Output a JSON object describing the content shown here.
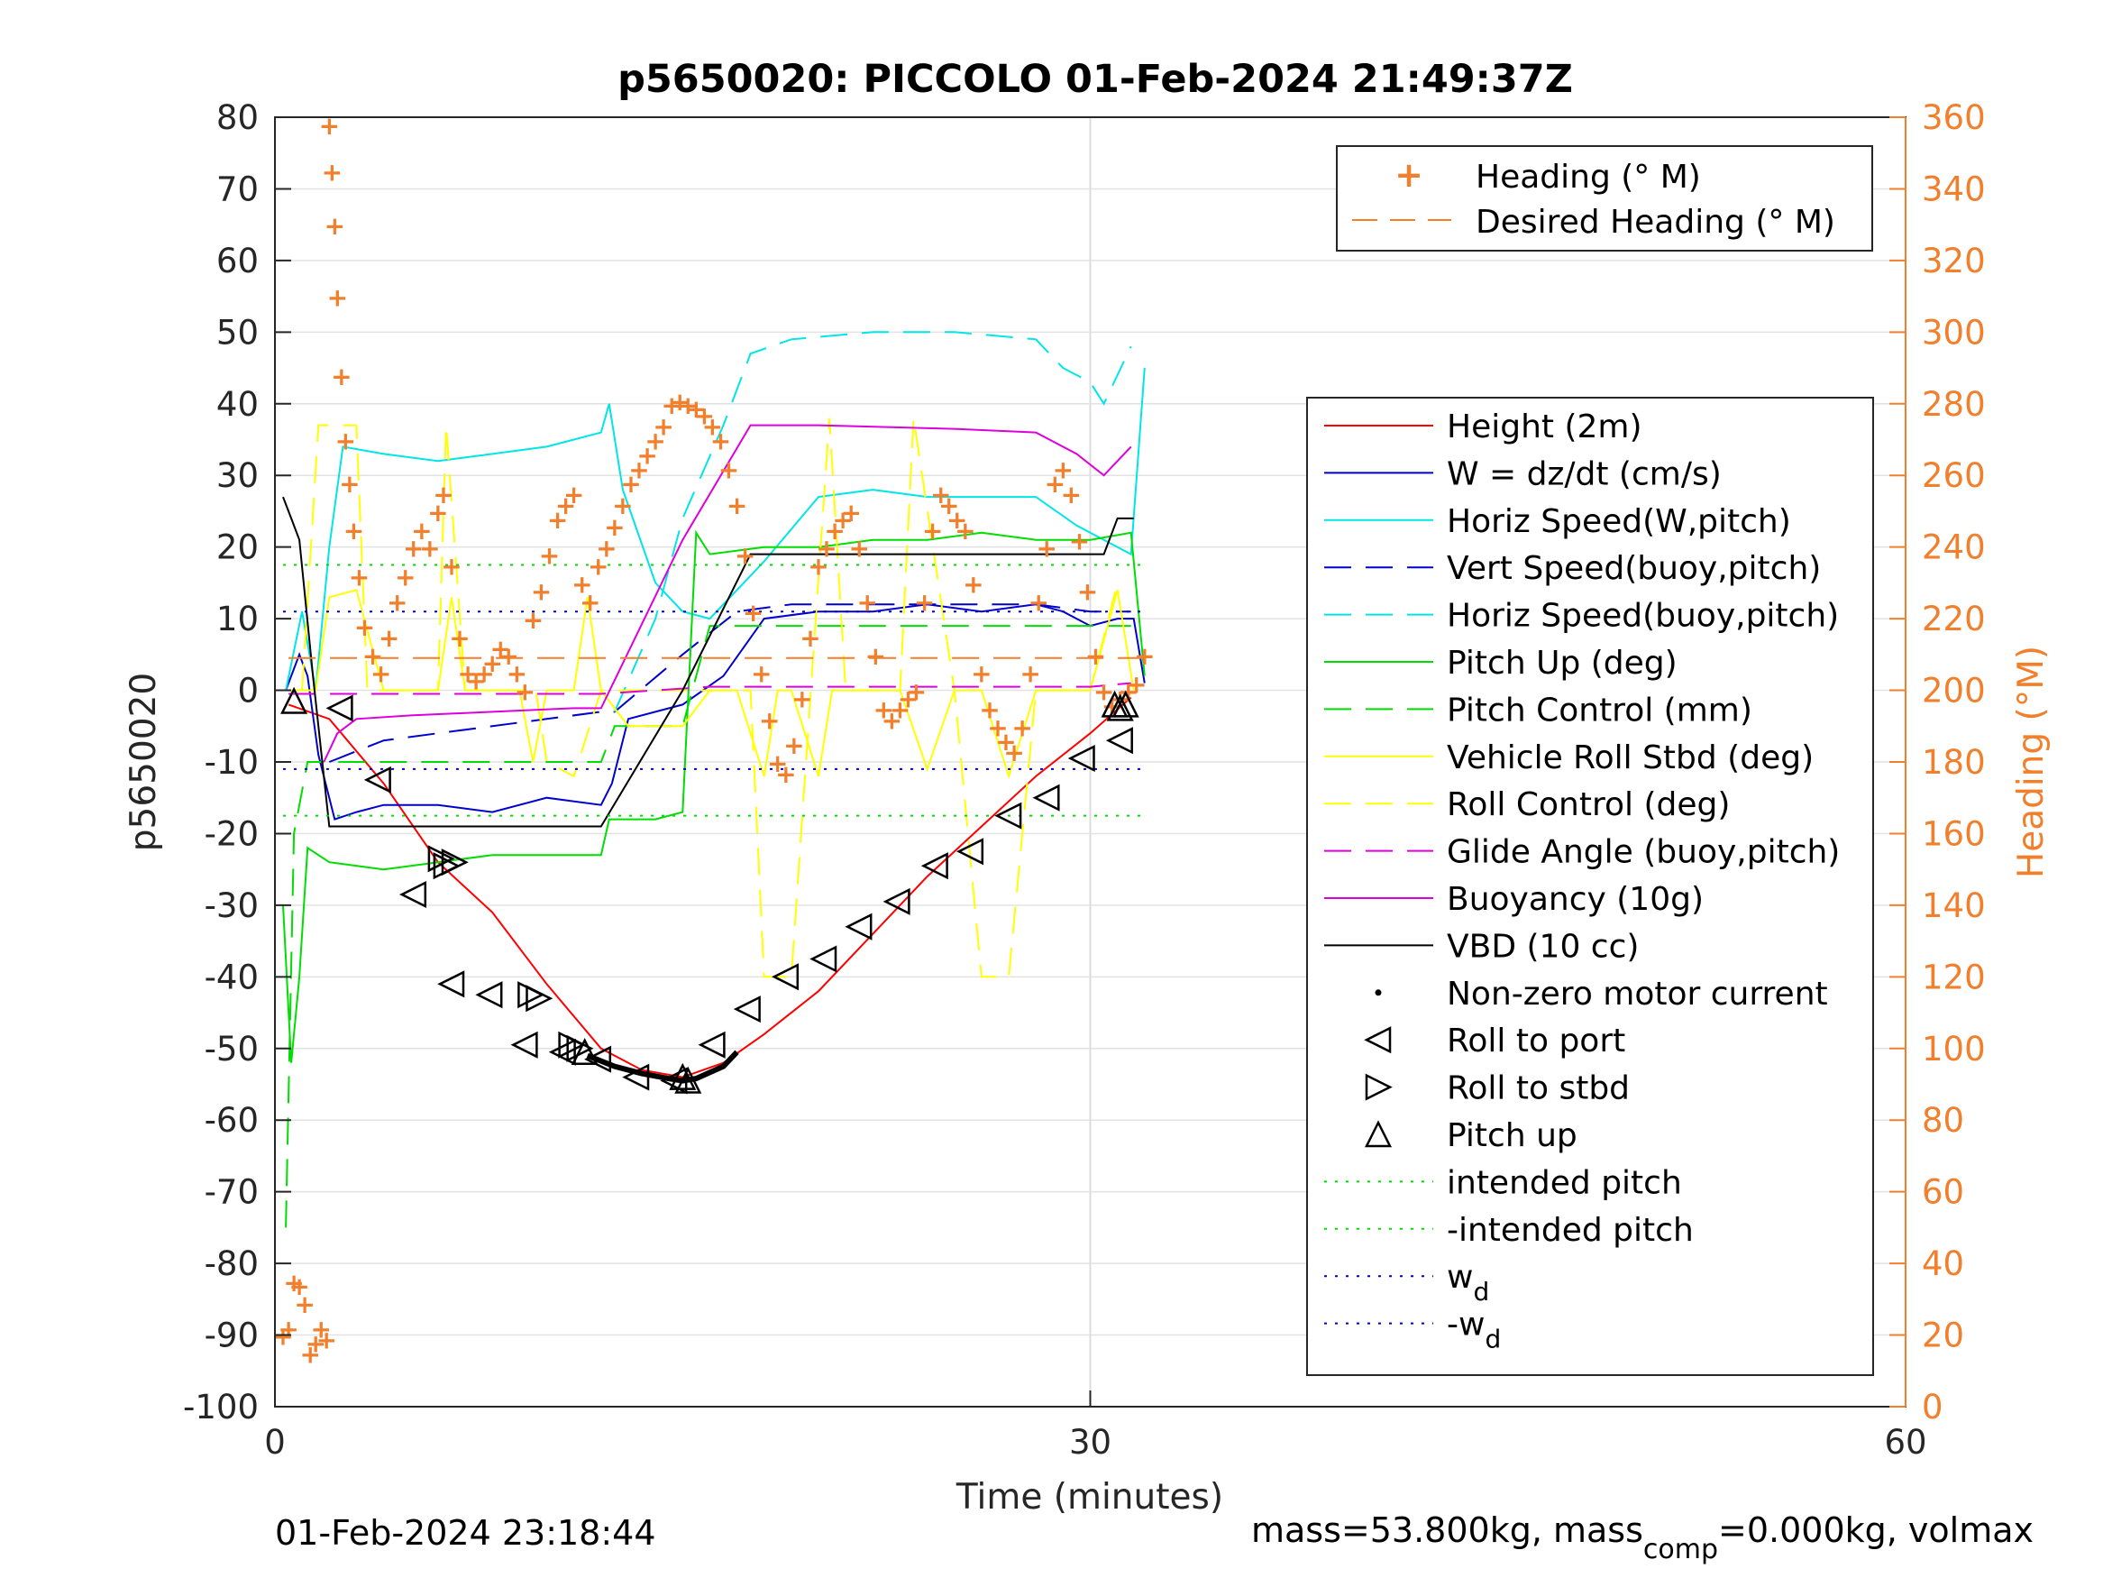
{
  "chart_data": {
    "type": "line",
    "title": "p5650020: PICCOLO 01-Feb-2024 21:49:37Z",
    "xlabel": "Time (minutes)",
    "ylabel": "p5650020",
    "ylabel_right": "Heading (°M)",
    "xlim": [
      0,
      60
    ],
    "ylim": [
      -100,
      80
    ],
    "ylim_right": [
      0,
      360
    ],
    "x_ticks": [
      "0",
      "30",
      "60"
    ],
    "y_ticks": [
      "-100",
      "-90",
      "-80",
      "-70",
      "-60",
      "-50",
      "-40",
      "-30",
      "-20",
      "-10",
      "0",
      "10",
      "20",
      "30",
      "40",
      "50",
      "60",
      "70",
      "80"
    ],
    "y_ticks_right": [
      "0",
      "20",
      "40",
      "60",
      "80",
      "100",
      "120",
      "140",
      "160",
      "180",
      "200",
      "220",
      "240",
      "260",
      "280",
      "300",
      "320",
      "340",
      "360"
    ],
    "grid": true,
    "legend_main": {
      "placement": "right",
      "entries": [
        "Height (2m)",
        "W = dz/dt (cm/s)",
        "Horiz Speed(W,pitch)",
        "Vert Speed(buoy,pitch)",
        "Horiz Speed(buoy,pitch)",
        "Pitch Up (deg)",
        "Pitch Control (mm)",
        "Vehicle Roll Stbd (deg)",
        "Roll Control (deg)",
        "Glide Angle (buoy,pitch)",
        "Buoyancy (10g)",
        "VBD (10 cc)",
        "Non-zero motor current",
        "Roll to port",
        "Roll to stbd",
        "Pitch up",
        "intended pitch",
        "-intended pitch",
        "w",
        "-w"
      ],
      "subscript": "d"
    },
    "legend_heading": {
      "placement": "top-right",
      "entries": [
        "Heading (° M)",
        "Desired Heading (° M)"
      ]
    },
    "series": [
      {
        "name": "Height (2m)",
        "color": "#ff0000",
        "x": [
          0.5,
          2,
          4,
          6,
          8,
          10,
          12,
          13.5,
          15,
          16.5,
          18,
          20,
          22,
          24,
          26,
          28,
          30,
          31.5
        ],
        "y": [
          -2,
          -4,
          -13,
          -24,
          -31,
          -41,
          -50,
          -53,
          -54,
          -52,
          -48,
          -42,
          -34,
          -26,
          -19,
          -12,
          -6,
          -1
        ]
      },
      {
        "name": "W = dz/dt (cm/s)",
        "color": "#0000cc",
        "x": [
          0.4,
          0.9,
          1.2,
          1.6,
          2.2,
          3,
          4,
          6,
          8,
          10,
          12,
          12.4,
          13,
          15,
          16.5,
          18,
          20,
          22,
          24,
          26,
          28,
          29,
          30,
          31,
          31.6,
          32
        ],
        "y": [
          0,
          5,
          2,
          -9,
          -18,
          -17,
          -16,
          -16,
          -17,
          -15,
          -16,
          -13,
          -4,
          -2,
          2,
          10,
          11,
          11,
          12,
          11,
          12,
          11,
          9,
          10,
          10,
          1
        ]
      },
      {
        "name": "Horiz Speed(W,pitch)",
        "color": "#00e5e5",
        "x": [
          0.4,
          1,
          1.5,
          2,
          2.5,
          4,
          6,
          8,
          10,
          12,
          12.3,
          12.8,
          14,
          15,
          16,
          18,
          20,
          22,
          24,
          26,
          28,
          29.5,
          30.5,
          31.5,
          32
        ],
        "y": [
          0,
          11,
          0,
          20,
          34,
          33,
          32,
          33,
          34,
          36,
          40,
          28,
          15,
          11,
          10,
          18,
          27,
          28,
          27,
          27,
          27,
          23,
          21,
          19,
          45
        ]
      },
      {
        "name": "Vert Speed(buoy,pitch)",
        "color": "#0000cc",
        "dashed": true,
        "x": [
          2,
          4,
          6,
          8,
          10,
          12,
          12.5,
          15,
          17,
          19,
          22,
          25,
          28,
          30,
          31.5
        ],
        "y": [
          -10,
          -7,
          -6,
          -5,
          -4,
          -3,
          -3,
          5,
          11,
          12,
          12,
          12,
          12,
          11,
          11
        ]
      },
      {
        "name": "Horiz Speed(buoy,pitch)",
        "color": "#00e5e5",
        "dashed": true,
        "x": [
          12.5,
          14,
          15,
          16.5,
          17.5,
          19,
          22,
          25,
          28,
          29,
          30,
          30.5,
          31.5
        ],
        "y": [
          -3,
          10,
          24,
          37,
          47,
          49,
          50,
          50,
          49,
          45,
          43,
          40,
          48
        ]
      },
      {
        "name": "Pitch Up (deg)",
        "color": "#00dd00",
        "x": [
          0.3,
          0.6,
          0.9,
          1.2,
          2,
          4,
          6,
          8,
          10,
          12,
          12.3,
          14,
          15,
          15.5,
          16,
          18,
          20,
          22,
          24,
          26,
          28,
          30,
          31.5,
          32
        ],
        "y": [
          -30,
          -52,
          -40,
          -22,
          -24,
          -25,
          -24,
          -23,
          -23,
          -23,
          -18,
          -18,
          -17,
          22,
          19,
          20,
          20,
          21,
          21,
          22,
          21,
          21,
          22,
          2
        ]
      },
      {
        "name": "Pitch Control (mm)",
        "color": "#00dd00",
        "dashed": true,
        "x": [
          0.4,
          0.7,
          1.2,
          2,
          6,
          12,
          12.5,
          15,
          16,
          20,
          25,
          30,
          31.5
        ],
        "y": [
          -75,
          -20,
          -10,
          -10,
          -10,
          -10,
          -5,
          -5,
          9,
          9,
          9,
          9,
          9
        ]
      },
      {
        "name": "Vehicle Roll Stbd (deg)",
        "color": "#ffff00",
        "x": [
          0.5,
          1.5,
          2,
          3,
          4,
          6,
          6.5,
          7,
          8,
          9,
          9.5,
          10,
          11,
          11.5,
          12,
          13,
          15,
          16,
          17,
          18,
          18.5,
          19,
          20,
          20.5,
          21,
          22,
          23,
          24,
          25,
          26,
          27,
          28,
          29,
          30,
          31,
          31.6
        ],
        "y": [
          0,
          0,
          13,
          14,
          0,
          0,
          13,
          0,
          0,
          0,
          -10,
          0,
          0,
          13,
          0,
          -5,
          -5,
          0,
          0,
          -12,
          0,
          0,
          -12,
          0,
          0,
          0,
          0,
          -11,
          0,
          0,
          -12,
          0,
          0,
          0,
          14,
          0
        ]
      },
      {
        "name": "Roll Control (deg)",
        "color": "#ffff00",
        "dashed": true,
        "x": [
          1,
          1.6,
          2,
          3,
          3.4,
          6,
          6.3,
          7,
          9.6,
          10,
          11,
          12,
          17.5,
          18,
          19,
          20.4,
          21,
          23,
          23.5,
          25,
          26,
          27,
          28,
          30,
          31
        ],
        "y": [
          0,
          37,
          37,
          37,
          0,
          0,
          37,
          0,
          0,
          -10,
          -12,
          0,
          0,
          -40,
          -40,
          38,
          0,
          0,
          38,
          0,
          -40,
          -40,
          0,
          0,
          15
        ]
      },
      {
        "name": "Glide Angle (buoy,pitch)",
        "color": "#dd00dd",
        "dashed": true,
        "x": [
          0.5,
          2,
          6,
          12,
          16,
          20,
          25,
          30,
          31.5
        ],
        "y": [
          -0.5,
          -0.5,
          -0.5,
          -0.5,
          0.5,
          0.5,
          0.5,
          0.5,
          1
        ]
      },
      {
        "name": "Buoyancy (10g)",
        "color": "#dd00dd",
        "x": [
          1.8,
          2.3,
          3,
          5,
          8,
          11,
          12,
          15,
          17.5,
          18,
          20,
          25,
          28,
          29.5,
          30.5,
          31.5
        ],
        "y": [
          -10,
          -6,
          -4,
          -3.5,
          -3,
          -2.5,
          -2.5,
          21,
          37,
          37,
          37,
          36.5,
          36,
          33,
          30,
          34
        ]
      },
      {
        "name": "VBD (10 cc)",
        "color": "#000000",
        "x": [
          0.3,
          0.6,
          0.9,
          1.4,
          2,
          6,
          12,
          15,
          17.5,
          18,
          20,
          25,
          29,
          30.5,
          31,
          31.6
        ],
        "y": [
          27,
          24,
          21,
          2,
          -19,
          -19,
          -19,
          0,
          19,
          19,
          19,
          19,
          19,
          19,
          24,
          24
        ]
      },
      {
        "name": "intended pitch",
        "color": "#00dd00",
        "dotted": true,
        "x": [
          0.3,
          32
        ],
        "y": [
          17.5,
          17.5
        ]
      },
      {
        "name": "-intended pitch",
        "color": "#00dd00",
        "dotted": true,
        "x": [
          0.3,
          32
        ],
        "y": [
          -17.5,
          -17.5
        ]
      },
      {
        "name": "w",
        "color": "#0000cc",
        "dotted": true,
        "x": [
          0.3,
          32
        ],
        "y": [
          11,
          11
        ]
      },
      {
        "name": "-w",
        "color": "#0000cc",
        "dotted": true,
        "x": [
          0.3,
          32
        ],
        "y": [
          -11,
          -11
        ]
      },
      {
        "name": "Desired Heading (° M)",
        "color": "#f27f2c",
        "dashed": true,
        "axis": "right",
        "x": [
          0.5,
          32
        ],
        "y": [
          209,
          209
        ]
      }
    ],
    "heading_points": {
      "name": "Heading (° M)",
      "color": "#f27f2c",
      "x": [
        0.3,
        0.5,
        0.7,
        0.9,
        1.1,
        1.3,
        1.5,
        1.7,
        1.9,
        2.0,
        2.1,
        2.2,
        2.3,
        2.45,
        2.6,
        2.75,
        2.9,
        3.1,
        3.3,
        3.6,
        3.9,
        4.2,
        4.5,
        4.8,
        5.1,
        5.4,
        5.7,
        6.0,
        6.2,
        6.5,
        6.8,
        7.1,
        7.4,
        7.7,
        8.0,
        8.3,
        8.6,
        8.9,
        9.2,
        9.5,
        9.8,
        10.1,
        10.4,
        10.7,
        11.0,
        11.3,
        11.6,
        11.9,
        12.2,
        12.5,
        12.8,
        13.1,
        13.4,
        13.7,
        14.0,
        14.3,
        14.6,
        14.9,
        15.2,
        15.5,
        15.8,
        16.1,
        16.4,
        16.7,
        17.0,
        17.3,
        17.6,
        17.9,
        18.2,
        18.5,
        18.8,
        19.1,
        19.4,
        19.7,
        20.0,
        20.3,
        20.6,
        20.9,
        21.2,
        21.5,
        21.8,
        22.1,
        22.4,
        22.7,
        23.0,
        23.3,
        23.6,
        23.9,
        24.2,
        24.5,
        24.8,
        25.1,
        25.4,
        25.7,
        26.0,
        26.3,
        26.6,
        26.9,
        27.2,
        27.5,
        27.8,
        28.1,
        28.4,
        28.7,
        29.0,
        29.3,
        29.6,
        29.9,
        30.2,
        30.5,
        30.8,
        31.1,
        31.4,
        31.7,
        32.0
      ],
      "y": [
        20,
        22,
        35,
        34,
        29,
        15,
        18,
        22,
        19,
        358,
        345,
        330,
        310,
        288,
        270,
        258,
        245,
        232,
        218,
        210,
        205,
        215,
        225,
        232,
        240,
        245,
        240,
        250,
        255,
        235,
        215,
        205,
        203,
        205,
        208,
        212,
        210,
        205,
        200,
        220,
        228,
        238,
        248,
        252,
        255,
        230,
        225,
        235,
        240,
        246,
        252,
        258,
        262,
        266,
        270,
        274,
        280,
        281,
        280,
        279,
        277,
        274,
        270,
        262,
        252,
        238,
        222,
        205,
        192,
        180,
        177,
        185,
        198,
        215,
        235,
        240,
        245,
        248,
        250,
        240,
        225,
        210,
        195,
        192,
        195,
        198,
        200,
        225,
        245,
        255,
        252,
        248,
        245,
        230,
        205,
        195,
        190,
        186,
        183,
        190,
        205,
        225,
        240,
        258,
        262,
        255,
        242,
        228,
        210,
        200,
        196,
        198,
        200,
        202,
        210
      ]
    },
    "markers": {
      "roll_to_port": {
        "x": [
          2.4,
          3.8,
          5.1,
          6.5,
          7.9,
          9.2,
          10.6,
          11.9,
          13.3,
          14.7,
          16.1,
          17.4,
          18.8,
          20.2,
          21.5,
          22.9,
          24.3,
          25.6,
          27.0,
          28.4,
          29.7,
          31.1
        ],
        "y": [
          -2.5,
          -12.5,
          -28.5,
          -41,
          -42.5,
          -49.5,
          -50.5,
          -51.5,
          -54,
          -54.5,
          -49.5,
          -44.5,
          -40,
          -37.5,
          -33,
          -29.5,
          -24.5,
          -22.5,
          -17.5,
          -15,
          -9.5,
          -7
        ]
      },
      "roll_to_stbd": {
        "x": [
          6.1,
          6.3,
          6.6,
          9.4,
          9.7,
          10.9,
          11.2
        ],
        "y": [
          -23.5,
          -24.5,
          -24,
          -42.5,
          -43,
          -49.5,
          -50
        ]
      },
      "pitch_up": {
        "x": [
          0.7,
          11.4,
          15.0,
          15.2,
          30.9,
          31.1,
          31.3
        ],
        "y": [
          -1.5,
          -50.5,
          -54,
          -54.5,
          -2,
          -2.5,
          -2
        ]
      },
      "motor_segment": {
        "x": [
          11.5,
          12.5,
          13.5,
          14.5,
          15.0,
          15.5,
          16.5,
          17.0
        ],
        "y": [
          -51,
          -52.5,
          -53.5,
          -54.2,
          -54.5,
          -54.2,
          -52.5,
          -50.5
        ]
      }
    }
  },
  "footer": {
    "timestamp": "01-Feb-2024 23:18:44",
    "mass_prefix": "mass=53.800kg, mass",
    "mass_sub": "comp",
    "mass_suffix": "=0.000kg, volmax"
  }
}
